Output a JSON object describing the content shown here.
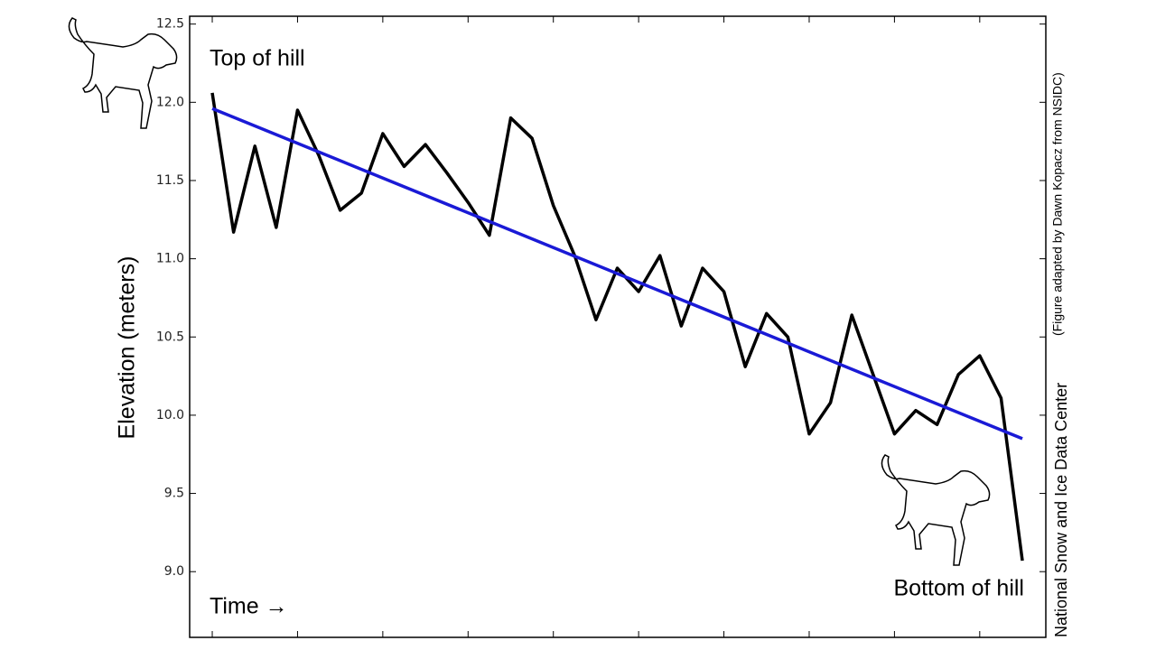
{
  "chart_data": {
    "type": "line",
    "ylabel": "Elevation (meters)",
    "annotations": [
      "Top of hill",
      "Time →",
      "Bottom of hill"
    ],
    "credits": [
      "National Snow and Ice Data Center",
      "(Figure adapted by Dawn Kopacz from NSIDC)"
    ],
    "xlim": [
      -1.06,
      39.1
    ],
    "xticks": [
      0,
      4,
      8,
      12,
      16,
      20,
      24,
      28,
      32,
      36
    ],
    "ylim": [
      8.58,
      12.55
    ],
    "yticks": [
      {
        "value": 9,
        "label": "9.0"
      },
      9.5,
      {
        "value": 10,
        "label": "10.0"
      },
      10.5,
      {
        "value": 11,
        "label": "11.0"
      },
      11.5,
      {
        "value": 12,
        "label": "12.0"
      },
      12.5
    ],
    "series": [
      {
        "color": "#000000",
        "x": [
          0,
          1,
          2,
          3,
          4,
          5,
          6,
          7,
          8,
          9,
          10,
          11,
          12,
          13,
          14,
          15,
          16,
          17,
          18,
          19,
          20,
          21,
          22,
          23,
          24,
          25,
          26,
          27,
          28,
          29,
          30,
          31,
          32,
          33,
          34,
          35,
          36,
          37,
          38
        ],
        "values": [
          12.06,
          11.17,
          11.72,
          11.2,
          11.95,
          11.66,
          11.31,
          11.42,
          11.8,
          11.59,
          11.73,
          11.55,
          11.36,
          11.15,
          11.9,
          11.77,
          11.34,
          11.02,
          10.61,
          10.94,
          10.79,
          11.02,
          10.57,
          10.94,
          10.79,
          10.31,
          10.65,
          10.5,
          9.88,
          10.08,
          10.64,
          10.26,
          9.88,
          10.03,
          9.94,
          10.26,
          10.38,
          10.11,
          9.07
        ]
      },
      {
        "color": "#1a1ad6",
        "x": [
          0,
          38
        ],
        "values": [
          11.96,
          9.85
        ]
      }
    ]
  }
}
